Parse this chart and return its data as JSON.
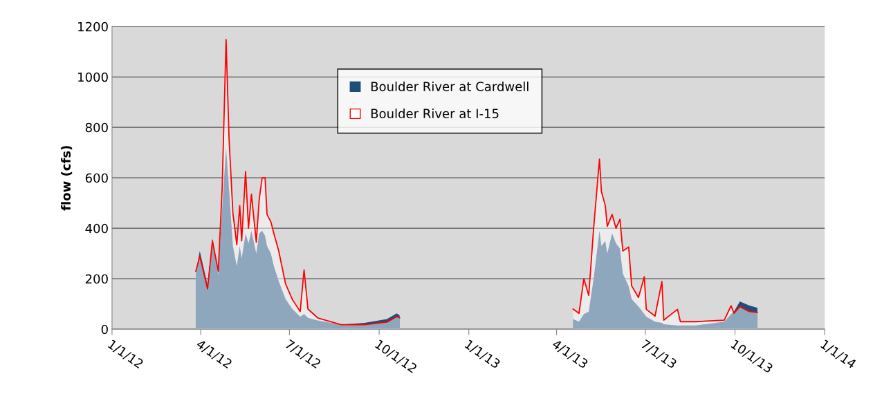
{
  "chart_data": {
    "type": "area",
    "ylabel": "flow (cfs)",
    "x": [
      "2012-03-27",
      "2012-03-31",
      "2012-04-08",
      "2012-04-13",
      "2012-04-19",
      "2012-04-23",
      "2012-04-27",
      "2012-04-30",
      "2012-05-04",
      "2012-05-08",
      "2012-05-11",
      "2012-05-13",
      "2012-05-17",
      "2012-05-20",
      "2012-05-23",
      "2012-05-28",
      "2012-05-31",
      "2012-06-03",
      "2012-06-06",
      "2012-06-08",
      "2012-06-12",
      "2012-06-15",
      "2012-06-20",
      "2012-06-27",
      "2012-07-04",
      "2012-07-12",
      "2012-07-16",
      "2012-07-20",
      "2012-07-30",
      "2012-08-23",
      "2012-09-16",
      "2012-10-09",
      "2012-10-19",
      "2012-10-22",
      "2013-01-01",
      "2013-04-18",
      "2013-04-24",
      "2013-04-29",
      "2013-05-04",
      "2013-05-09",
      "2013-05-15",
      "2013-05-17",
      "2013-05-21",
      "2013-05-23",
      "2013-05-28",
      "2013-06-01",
      "2013-06-05",
      "2013-06-08",
      "2013-06-14",
      "2013-06-17",
      "2013-06-24",
      "2013-06-30",
      "2013-07-02",
      "2013-07-11",
      "2013-07-18",
      "2013-07-20",
      "2013-08-03",
      "2013-08-06",
      "2013-08-22",
      "2013-09-20",
      "2013-09-27",
      "2013-09-30",
      "2013-10-06",
      "2013-10-15",
      "2013-10-24"
    ],
    "series": [
      {
        "name": "Boulder River at Cardwell",
        "color": "#1f4e79",
        "values": [
          220,
          310,
          175,
          360,
          215,
          480,
          720,
          560,
          330,
          250,
          330,
          280,
          380,
          340,
          390,
          300,
          380,
          390,
          370,
          330,
          300,
          250,
          190,
          120,
          80,
          50,
          60,
          45,
          35,
          18,
          25,
          40,
          63,
          55,
          null,
          40,
          30,
          60,
          70,
          200,
          390,
          330,
          350,
          300,
          380,
          340,
          320,
          220,
          170,
          120,
          90,
          60,
          50,
          30,
          25,
          20,
          15,
          15,
          15,
          30,
          60,
          70,
          110,
          95,
          85
        ]
      },
      {
        "name": "Boulder River at I-15",
        "color": "#ff0000",
        "values": [
          230,
          290,
          160,
          350,
          230,
          560,
          1148,
          760,
          460,
          335,
          490,
          350,
          625,
          400,
          535,
          345,
          515,
          600,
          600,
          455,
          425,
          380,
          310,
          180,
          118,
          70,
          235,
          80,
          45,
          18,
          18,
          28,
          50,
          45,
          null,
          80,
          63,
          200,
          134,
          400,
          674,
          545,
          490,
          408,
          455,
          400,
          436,
          310,
          326,
          172,
          126,
          208,
          79,
          52,
          189,
          36,
          79,
          30,
          30,
          36,
          93,
          63,
          90,
          71,
          66
        ]
      }
    ],
    "xlim": [
      "2012-01-01",
      "2014-01-01"
    ],
    "xticks": [
      {
        "value": "2012-01-01",
        "label": "1/1/12"
      },
      {
        "value": "2012-04-01",
        "label": "4/1/12"
      },
      {
        "value": "2012-07-01",
        "label": "7/1/12"
      },
      {
        "value": "2012-10-01",
        "label": "10/1/12"
      },
      {
        "value": "2013-01-01",
        "label": "1/1/13"
      },
      {
        "value": "2013-04-01",
        "label": "4/1/13"
      },
      {
        "value": "2013-07-01",
        "label": "7/1/13"
      },
      {
        "value": "2013-10-01",
        "label": "10/1/13"
      },
      {
        "value": "2014-01-01",
        "label": "1/1/14"
      }
    ],
    "ylim": [
      0,
      1200
    ],
    "yticks": [
      0,
      200,
      400,
      600,
      800,
      1000,
      1200
    ],
    "grid": "y",
    "legend": "top"
  }
}
